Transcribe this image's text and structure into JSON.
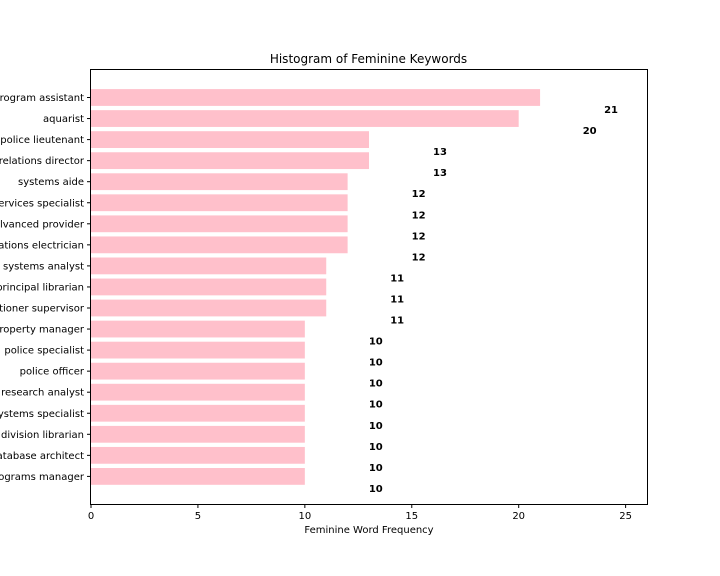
{
  "chart_data": {
    "type": "bar",
    "orientation": "horizontal",
    "title": "Histogram of Feminine Keywords",
    "xlabel": "Feminine Word Frequency",
    "ylabel": "",
    "xlim": [
      0,
      26
    ],
    "xticks": [
      0,
      5,
      10,
      15,
      20,
      25
    ],
    "bar_color": "#ffc0cb",
    "categories": [
      "rogram assistant",
      "aquarist",
      "police lieutenant",
      "relations director",
      "systems aide",
      "ervices specialist",
      "lvanced provider",
      "ations electrician",
      "systems analyst",
      "principal librarian",
      "tioner supervisor",
      "roperty manager",
      "police specialist",
      "police officer",
      "research analyst",
      "ystems specialist",
      "division librarian",
      "atabase architect",
      "ograms manager"
    ],
    "values": [
      21,
      20,
      13,
      13,
      12,
      12,
      12,
      12,
      11,
      11,
      11,
      10,
      10,
      10,
      10,
      10,
      10,
      10,
      10
    ],
    "data_labels": [
      "21",
      "20",
      "13",
      "13",
      "12",
      "12",
      "12",
      "12",
      "11",
      "11",
      "11",
      "10",
      "10",
      "10",
      "10",
      "10",
      "10",
      "10",
      "10"
    ]
  }
}
